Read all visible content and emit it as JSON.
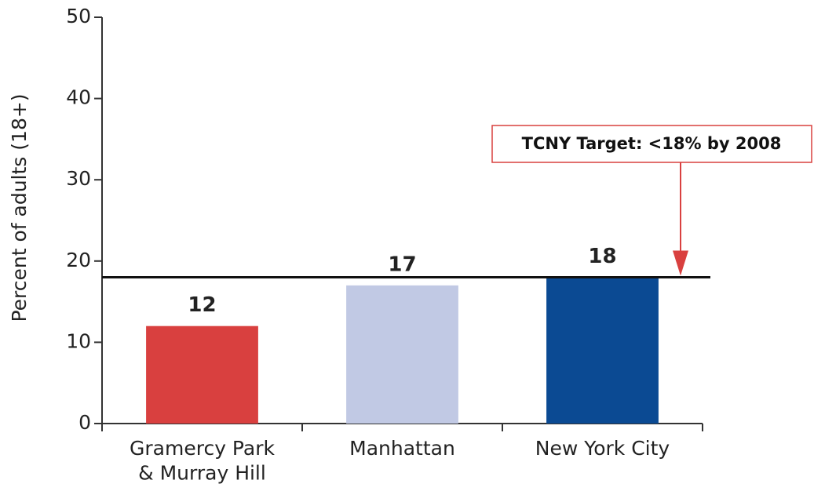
{
  "chart_data": {
    "type": "bar",
    "y_label": "Percent of adults (18+)",
    "categories": [
      "Gramercy Park\n& Murray Hill",
      "Manhattan",
      "New York City"
    ],
    "values": [
      12,
      17,
      18
    ],
    "colors": [
      "#d9403f",
      "#c1c9e4",
      "#0b4a93"
    ],
    "ylim": [
      0,
      50
    ],
    "yticks": [
      0,
      10,
      20,
      30,
      40,
      50
    ],
    "target": {
      "value": 18,
      "label": "TCNY Target: <18% by 2008",
      "color": "#d9403f"
    }
  }
}
